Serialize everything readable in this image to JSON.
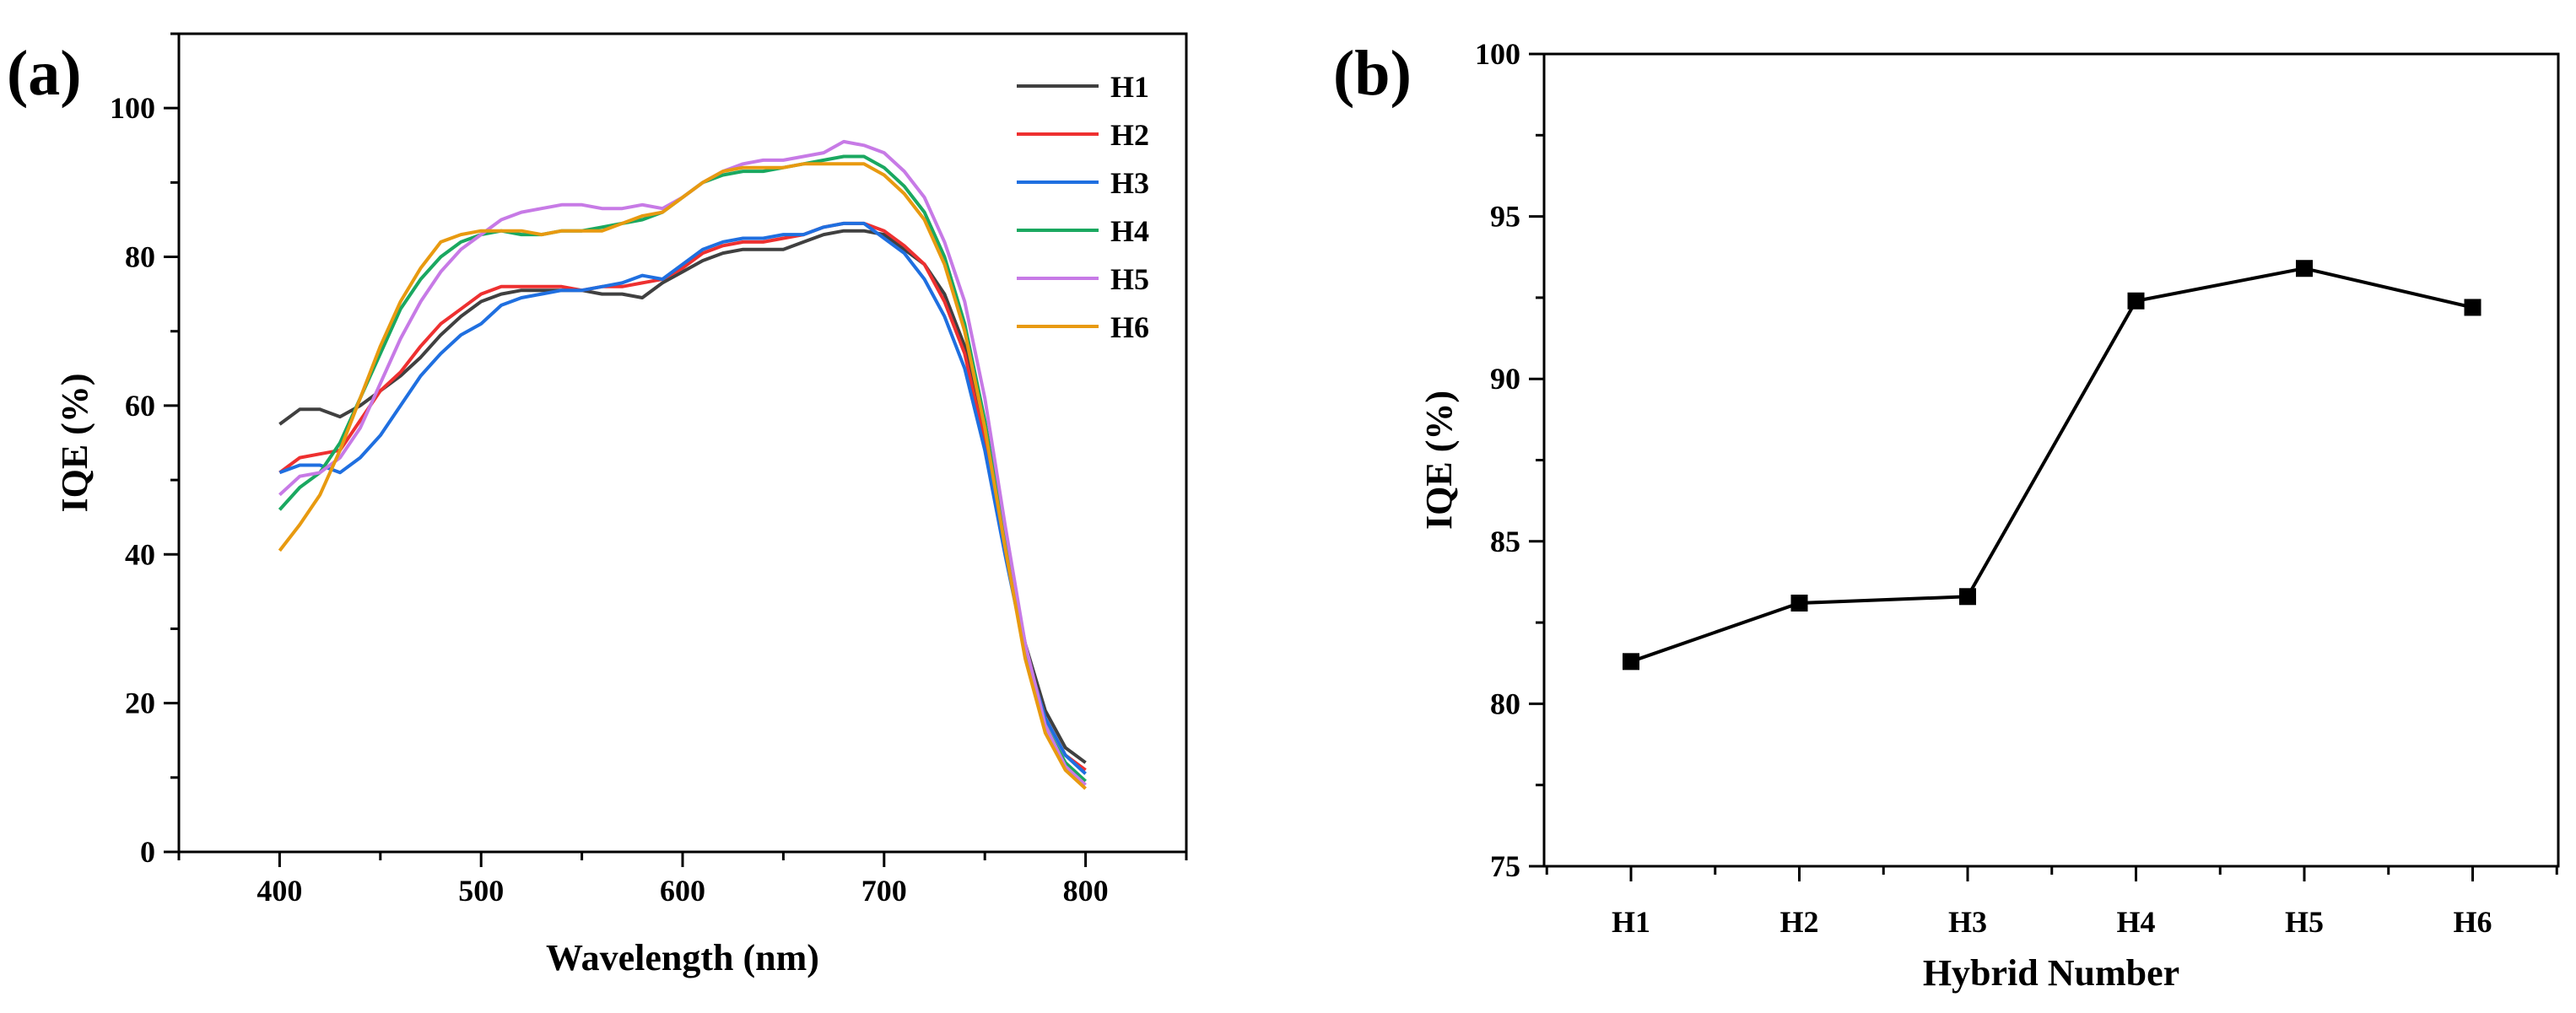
{
  "colors": {
    "H1": "#404040",
    "H2": "#ee3030",
    "H3": "#1f6fe0",
    "H4": "#1aa860",
    "H5": "#c77ae6",
    "H6": "#e89a10",
    "axis": "#000000"
  },
  "chart_data": [
    {
      "panel_label": "(a)",
      "type": "line",
      "title": "",
      "xlabel": "Wavelength (nm)",
      "ylabel": "IQE (%)",
      "xlim": [
        350,
        850
      ],
      "ylim": [
        0,
        110
      ],
      "xticks": [
        400,
        500,
        600,
        700,
        800
      ],
      "yticks": [
        0,
        20,
        40,
        60,
        80,
        100
      ],
      "grid": false,
      "legend_position": "top-right",
      "series": [
        {
          "name": "H1",
          "x": [
            400,
            410,
            420,
            430,
            440,
            450,
            460,
            470,
            480,
            490,
            500,
            510,
            520,
            530,
            540,
            550,
            560,
            570,
            580,
            590,
            600,
            610,
            620,
            630,
            640,
            650,
            660,
            670,
            680,
            690,
            700,
            710,
            720,
            730,
            740,
            750,
            760,
            770,
            780,
            790,
            800
          ],
          "y": [
            57.5,
            59.5,
            59.5,
            58.5,
            60,
            62,
            64,
            66.5,
            69.5,
            72,
            74,
            75,
            75.5,
            75.5,
            75.5,
            75.5,
            75,
            75,
            74.5,
            76.5,
            78,
            79.5,
            80.5,
            81,
            81,
            81,
            82,
            83,
            83.5,
            83.5,
            83,
            81,
            79,
            75,
            68,
            56,
            42,
            28,
            19,
            14,
            12
          ]
        },
        {
          "name": "H2",
          "x": [
            400,
            410,
            420,
            430,
            440,
            450,
            460,
            470,
            480,
            490,
            500,
            510,
            520,
            530,
            540,
            550,
            560,
            570,
            580,
            590,
            600,
            610,
            620,
            630,
            640,
            650,
            660,
            670,
            680,
            690,
            700,
            710,
            720,
            730,
            740,
            750,
            760,
            770,
            780,
            790,
            800
          ],
          "y": [
            51,
            53,
            53.5,
            54,
            58,
            62,
            64.5,
            68,
            71,
            73,
            75,
            76,
            76,
            76,
            76,
            75.5,
            76,
            76,
            76.5,
            77,
            78.5,
            80.5,
            81.5,
            82,
            82,
            82.5,
            83,
            84,
            84.5,
            84.5,
            83.5,
            81.5,
            79,
            74,
            67,
            55,
            41,
            27,
            18,
            13,
            11
          ]
        },
        {
          "name": "H3",
          "x": [
            400,
            410,
            420,
            430,
            440,
            450,
            460,
            470,
            480,
            490,
            500,
            510,
            520,
            530,
            540,
            550,
            560,
            570,
            580,
            590,
            600,
            610,
            620,
            630,
            640,
            650,
            660,
            670,
            680,
            690,
            700,
            710,
            720,
            730,
            740,
            750,
            760,
            770,
            780,
            790,
            800
          ],
          "y": [
            51,
            52,
            52,
            51,
            53,
            56,
            60,
            64,
            67,
            69.5,
            71,
            73.5,
            74.5,
            75,
            75.5,
            75.5,
            76,
            76.5,
            77.5,
            77,
            79,
            81,
            82,
            82.5,
            82.5,
            83,
            83,
            84,
            84.5,
            84.5,
            82.5,
            80.5,
            77,
            72,
            65,
            54,
            40,
            27,
            18,
            13,
            10.5
          ]
        },
        {
          "name": "H4",
          "x": [
            400,
            410,
            420,
            430,
            440,
            450,
            460,
            470,
            480,
            490,
            500,
            510,
            520,
            530,
            540,
            550,
            560,
            570,
            580,
            590,
            600,
            610,
            620,
            630,
            640,
            650,
            660,
            670,
            680,
            690,
            700,
            710,
            720,
            730,
            740,
            750,
            760,
            770,
            780,
            790,
            800
          ],
          "y": [
            46,
            49,
            51,
            55,
            61,
            67,
            73,
            77,
            80,
            82,
            83,
            83.5,
            83,
            83,
            83.5,
            83.5,
            84,
            84.5,
            85,
            86,
            88,
            90,
            91,
            91.5,
            91.5,
            92,
            92.5,
            93,
            93.5,
            93.5,
            92,
            89.5,
            86,
            80,
            71,
            58,
            42,
            27,
            17,
            12,
            9.5
          ]
        },
        {
          "name": "H5",
          "x": [
            400,
            410,
            420,
            430,
            440,
            450,
            460,
            470,
            480,
            490,
            500,
            510,
            520,
            530,
            540,
            550,
            560,
            570,
            580,
            590,
            600,
            610,
            620,
            630,
            640,
            650,
            660,
            670,
            680,
            690,
            700,
            710,
            720,
            730,
            740,
            750,
            760,
            770,
            780,
            790,
            800
          ],
          "y": [
            48,
            50.5,
            51,
            53,
            57,
            63,
            69,
            74,
            78,
            81,
            83,
            85,
            86,
            86.5,
            87,
            87,
            86.5,
            86.5,
            87,
            86.5,
            88,
            90,
            91.5,
            92.5,
            93,
            93,
            93.5,
            94,
            95.5,
            95,
            94,
            91.5,
            88,
            82,
            74,
            61,
            44,
            28,
            17,
            11.5,
            9
          ]
        },
        {
          "name": "H6",
          "x": [
            400,
            410,
            420,
            430,
            440,
            450,
            460,
            470,
            480,
            490,
            500,
            510,
            520,
            530,
            540,
            550,
            560,
            570,
            580,
            590,
            600,
            610,
            620,
            630,
            640,
            650,
            660,
            670,
            680,
            690,
            700,
            710,
            720,
            730,
            740,
            750,
            760,
            770,
            780,
            790,
            800
          ],
          "y": [
            40.5,
            44,
            48,
            54,
            61,
            68,
            74,
            78.5,
            82,
            83,
            83.5,
            83.5,
            83.5,
            83,
            83.5,
            83.5,
            83.5,
            84.5,
            85.5,
            86,
            88,
            90,
            91.5,
            92,
            92,
            92,
            92.5,
            92.5,
            92.5,
            92.5,
            91,
            88.5,
            85,
            79,
            70,
            57,
            41,
            26,
            16,
            11,
            8.5
          ]
        }
      ]
    },
    {
      "panel_label": "(b)",
      "type": "line",
      "title": "",
      "xlabel": "Hybrid Number",
      "ylabel": "IQE (%)",
      "categories": [
        "H1",
        "H2",
        "H3",
        "H4",
        "H5",
        "H6"
      ],
      "ylim": [
        75,
        100
      ],
      "yticks": [
        75,
        80,
        85,
        90,
        95,
        100
      ],
      "grid": false,
      "marker": "square",
      "series": [
        {
          "name": "IQE",
          "values": [
            81.3,
            83.1,
            83.3,
            92.4,
            93.4,
            92.2
          ]
        }
      ]
    }
  ]
}
